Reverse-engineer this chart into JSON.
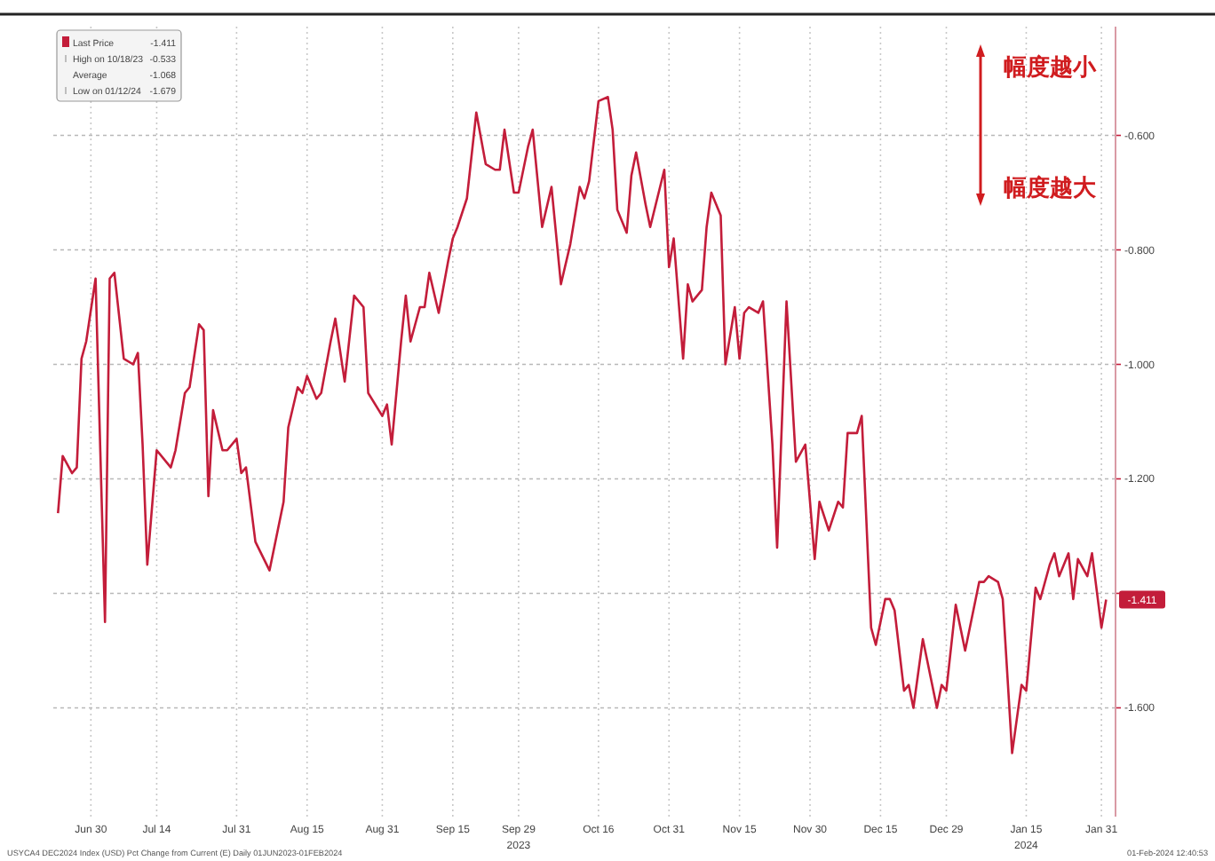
{
  "chart_data": {
    "type": "line",
    "x": [
      "2023-06-23",
      "2023-06-24",
      "2023-06-26",
      "2023-06-27",
      "2023-06-28",
      "2023-06-29",
      "2023-07-01",
      "2023-07-03",
      "2023-07-04",
      "2023-07-05",
      "2023-07-07",
      "2023-07-09",
      "2023-07-10",
      "2023-07-11",
      "2023-07-12",
      "2023-07-14",
      "2023-07-17",
      "2023-07-18",
      "2023-07-20",
      "2023-07-21",
      "2023-07-23",
      "2023-07-24",
      "2023-07-25",
      "2023-07-26",
      "2023-07-28",
      "2023-07-29",
      "2023-07-31",
      "2023-08-01",
      "2023-08-02",
      "2023-08-04",
      "2023-08-07",
      "2023-08-10",
      "2023-08-11",
      "2023-08-13",
      "2023-08-14",
      "2023-08-15",
      "2023-08-17",
      "2023-08-18",
      "2023-08-20",
      "2023-08-21",
      "2023-08-23",
      "2023-08-25",
      "2023-08-27",
      "2023-08-28",
      "2023-08-31",
      "2023-09-01",
      "2023-09-02",
      "2023-09-04",
      "2023-09-05",
      "2023-09-06",
      "2023-09-08",
      "2023-09-09",
      "2023-09-10",
      "2023-09-12",
      "2023-09-14",
      "2023-09-15",
      "2023-09-16",
      "2023-09-18",
      "2023-09-20",
      "2023-09-22",
      "2023-09-24",
      "2023-09-25",
      "2023-09-26",
      "2023-09-28",
      "2023-09-29",
      "2023-10-01",
      "2023-10-02",
      "2023-10-04",
      "2023-10-06",
      "2023-10-08",
      "2023-10-10",
      "2023-10-12",
      "2023-10-13",
      "2023-10-14",
      "2023-10-16",
      "2023-10-18",
      "2023-10-19",
      "2023-10-20",
      "2023-10-22",
      "2023-10-23",
      "2023-10-24",
      "2023-10-26",
      "2023-10-27",
      "2023-10-30",
      "2023-10-31",
      "2023-11-01",
      "2023-11-03",
      "2023-11-04",
      "2023-11-05",
      "2023-11-07",
      "2023-11-08",
      "2023-11-09",
      "2023-11-11",
      "2023-11-12",
      "2023-11-14",
      "2023-11-15",
      "2023-11-16",
      "2023-11-17",
      "2023-11-19",
      "2023-11-20",
      "2023-11-22",
      "2023-11-23",
      "2023-11-25",
      "2023-11-27",
      "2023-11-29",
      "2023-12-01",
      "2023-12-02",
      "2023-12-04",
      "2023-12-06",
      "2023-12-07",
      "2023-12-08",
      "2023-12-10",
      "2023-12-11",
      "2023-12-13",
      "2023-12-14",
      "2023-12-16",
      "2023-12-17",
      "2023-12-18",
      "2023-12-20",
      "2023-12-21",
      "2023-12-22",
      "2023-12-24",
      "2023-12-25",
      "2023-12-27",
      "2023-12-28",
      "2023-12-29",
      "2023-12-31",
      "2024-01-02",
      "2024-01-03",
      "2024-01-05",
      "2024-01-06",
      "2024-01-07",
      "2024-01-09",
      "2024-01-10",
      "2024-01-12",
      "2024-01-14",
      "2024-01-15",
      "2024-01-17",
      "2024-01-18",
      "2024-01-20",
      "2024-01-21",
      "2024-01-22",
      "2024-01-24",
      "2024-01-25",
      "2024-01-26",
      "2024-01-28",
      "2024-01-29",
      "2024-01-31",
      "2024-02-01"
    ],
    "series": [
      {
        "name": "Last Price",
        "color": "#c31d3a",
        "values": [
          -1.26,
          -1.16,
          -1.19,
          -1.18,
          -0.99,
          -0.96,
          -0.85,
          -1.45,
          -0.85,
          -0.84,
          -0.99,
          -1.0,
          -0.98,
          -1.14,
          -1.35,
          -1.15,
          -1.18,
          -1.15,
          -1.05,
          -1.04,
          -0.93,
          -0.94,
          -1.23,
          -1.08,
          -1.15,
          -1.15,
          -1.13,
          -1.19,
          -1.18,
          -1.31,
          -1.36,
          -1.24,
          -1.11,
          -1.04,
          -1.05,
          -1.02,
          -1.06,
          -1.05,
          -0.96,
          -0.92,
          -1.03,
          -0.88,
          -0.9,
          -1.05,
          -1.09,
          -1.07,
          -1.14,
          -0.96,
          -0.88,
          -0.96,
          -0.9,
          -0.9,
          -0.84,
          -0.91,
          -0.82,
          -0.78,
          -0.76,
          -0.71,
          -0.56,
          -0.65,
          -0.66,
          -0.66,
          -0.59,
          -0.7,
          -0.7,
          -0.62,
          -0.59,
          -0.76,
          -0.69,
          -0.86,
          -0.79,
          -0.69,
          -0.71,
          -0.68,
          -0.54,
          -0.533,
          -0.59,
          -0.73,
          -0.77,
          -0.67,
          -0.63,
          -0.72,
          -0.76,
          -0.66,
          -0.83,
          -0.78,
          -0.99,
          -0.86,
          -0.89,
          -0.87,
          -0.76,
          -0.7,
          -0.74,
          -1.0,
          -0.9,
          -0.99,
          -0.91,
          -0.9,
          -0.91,
          -0.89,
          -1.14,
          -1.32,
          -0.89,
          -1.17,
          -1.14,
          -1.34,
          -1.24,
          -1.29,
          -1.24,
          -1.25,
          -1.12,
          -1.12,
          -1.09,
          -1.46,
          -1.49,
          -1.41,
          -1.41,
          -1.43,
          -1.57,
          -1.56,
          -1.6,
          -1.48,
          -1.52,
          -1.6,
          -1.56,
          -1.57,
          -1.42,
          -1.5,
          -1.46,
          -1.38,
          -1.38,
          -1.37,
          -1.38,
          -1.41,
          -1.679,
          -1.56,
          -1.57,
          -1.39,
          -1.41,
          -1.35,
          -1.33,
          -1.37,
          -1.33,
          -1.41,
          -1.34,
          -1.37,
          -1.33,
          -1.46,
          -1.411
        ]
      }
    ],
    "xlim": [
      "2023-06-22",
      "2024-02-03"
    ],
    "xticks": [
      {
        "value": "2023-06-30",
        "label": "Jun 30"
      },
      {
        "value": "2023-07-14",
        "label": "Jul 14"
      },
      {
        "value": "2023-07-31",
        "label": "Jul 31"
      },
      {
        "value": "2023-08-15",
        "label": "Aug 15"
      },
      {
        "value": "2023-08-31",
        "label": "Aug 31"
      },
      {
        "value": "2023-09-15",
        "label": "Sep 15"
      },
      {
        "value": "2023-09-29",
        "label": "Sep 29"
      },
      {
        "value": "2023-10-16",
        "label": "Oct 16"
      },
      {
        "value": "2023-10-31",
        "label": "Oct 31"
      },
      {
        "value": "2023-11-15",
        "label": "Nov 15"
      },
      {
        "value": "2023-11-30",
        "label": "Nov 30"
      },
      {
        "value": "2023-12-15",
        "label": "Dec 15"
      },
      {
        "value": "2023-12-29",
        "label": "Dec 29"
      },
      {
        "value": "2024-01-15",
        "label": "Jan 15"
      },
      {
        "value": "2024-01-31",
        "label": "Jan 31"
      }
    ],
    "ylim": [
      -1.79,
      -0.41
    ],
    "yticks": [
      {
        "value": -0.6,
        "label": "-0.600"
      },
      {
        "value": -0.8,
        "label": "-0.800"
      },
      {
        "value": -1.0,
        "label": "-1.000"
      },
      {
        "value": -1.2,
        "label": "-1.200"
      },
      {
        "value": -1.4,
        "label": null
      },
      {
        "value": -1.6,
        "label": "-1.600"
      }
    ],
    "grid": true,
    "legend": "top left",
    "annotations": [
      "-1.411",
      "-1.411",
      "High on 10/18/23",
      "-0.533",
      "Average",
      "-1.068",
      "Low on 01/12/24",
      "-1.679",
      "幅度越小",
      "幅度越大",
      "2023",
      "2024",
      "USYCA4 DEC2024 Index (USD) Pct Change from Current (E) Daily 01JUN2023-01FEB2024",
      "01-Feb-2024 12:40:53"
    ]
  }
}
